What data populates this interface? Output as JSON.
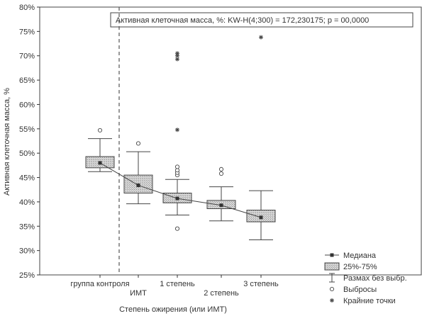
{
  "chart_data": {
    "type": "box",
    "title": "Активная клеточная масса, %:  KW-H(4;300) = 172,230175; p = 00,0000",
    "ylabel": "Активная клеточная масса, %",
    "xlabel": "Степень ожирения (или ИМТ)",
    "ylim": [
      25,
      80
    ],
    "yticks": [
      25,
      30,
      35,
      40,
      45,
      50,
      55,
      60,
      65,
      70,
      75,
      80
    ],
    "ytick_labels": [
      "25%",
      "30%",
      "35%",
      "40%",
      "45%",
      "50%",
      "55%",
      "60%",
      "65%",
      "70%",
      "75%",
      "80%"
    ],
    "categories": [
      "группа контроля",
      "ИМТ",
      "1 степень",
      "2 степень",
      "3 степень"
    ],
    "groups": [
      {
        "label": "группа контроля",
        "median": 48.0,
        "q1": 47.0,
        "q3": 49.3,
        "min": 46.2,
        "max": 53.0,
        "outliers": [
          54.7
        ],
        "extremes": []
      },
      {
        "label": "ИМТ",
        "median": 43.4,
        "q1": 41.8,
        "q3": 45.5,
        "min": 39.6,
        "max": 50.3,
        "outliers": [
          52.0
        ],
        "extremes": []
      },
      {
        "label": "1 степень",
        "median": 40.7,
        "q1": 39.8,
        "q3": 41.8,
        "min": 37.3,
        "max": 44.6,
        "outliers": [
          34.5,
          45.5,
          46.0,
          46.5,
          47.2
        ],
        "extremes": [
          54.8,
          69.3,
          70.0,
          70.5
        ]
      },
      {
        "label": "2 степень",
        "median": 39.3,
        "q1": 38.6,
        "q3": 40.3,
        "min": 36.1,
        "max": 43.1,
        "outliers": [
          45.8,
          46.7
        ],
        "extremes": []
      },
      {
        "label": "3 степень",
        "median": 36.8,
        "q1": 35.9,
        "q3": 38.3,
        "min": 32.2,
        "max": 42.3,
        "outliers": [],
        "extremes": [
          73.8
        ]
      }
    ],
    "legend": {
      "position": "bottom-right",
      "items": [
        {
          "label": "Медиана",
          "symbol": "median"
        },
        {
          "label": "25%-75%",
          "symbol": "box"
        },
        {
          "label": "Размах без выбр.",
          "symbol": "whisker"
        },
        {
          "label": "Выбросы",
          "symbol": "outlier"
        },
        {
          "label": "Крайние точки",
          "symbol": "extreme"
        }
      ]
    },
    "median_line": true,
    "reference_line": "dashed-vertical-after-control",
    "colors": {
      "box": "#bdbdbd",
      "line": "#444444",
      "axis": "#333333"
    }
  }
}
